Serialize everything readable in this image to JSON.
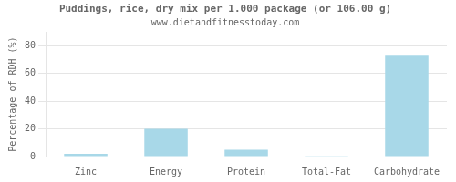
{
  "chart_data": {
    "type": "bar",
    "title": "Puddings, rice, dry mix per 1.000 package (or 106.00 g)",
    "subtitle": "www.dietandfitnesstoday.com",
    "categories": [
      "Zinc",
      "Energy",
      "Protein",
      "Total-Fat",
      "Carbohydrate"
    ],
    "values": [
      2.0,
      20.0,
      5.0,
      0.5,
      73.5
    ],
    "color": "#a8d8e8",
    "ylabel": "Percentage of RDH (%)",
    "ylim": [
      0,
      90
    ],
    "yticks": [
      0,
      20,
      40,
      60,
      80
    ],
    "grid": true
  }
}
